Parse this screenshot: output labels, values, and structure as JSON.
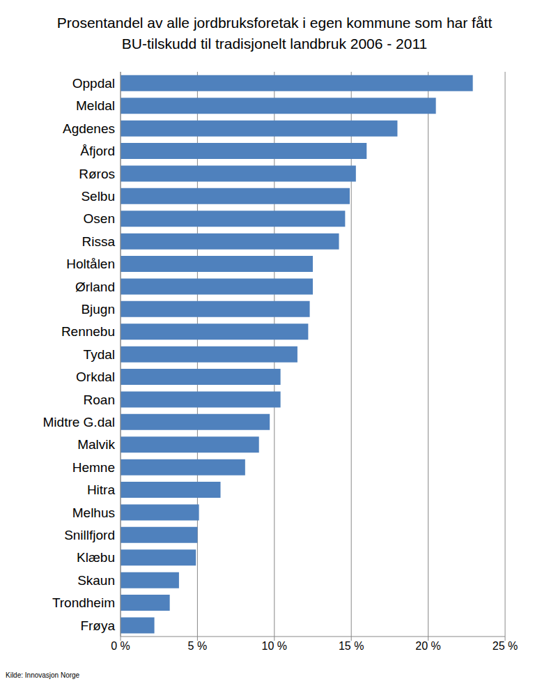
{
  "chart_data": {
    "type": "bar",
    "title": "Prosentandel av alle jordbruksforetak i egen kommune som har fått BU-tilskudd til tradisjonelt landbruk 2006 - 2011",
    "annotations": [
      "Kilde: Innovasjon Norge"
    ],
    "orientation": "horizontal",
    "categories": [
      "Oppdal",
      "Meldal",
      "Agdenes",
      "Åfjord",
      "Røros",
      "Selbu",
      "Osen",
      "Rissa",
      "Holtålen",
      "Ørland",
      "Bjugn",
      "Rennebu",
      "Tydal",
      "Orkdal",
      "Roan",
      "Midtre G.dal",
      "Malvik",
      "Hemne",
      "Hitra",
      "Melhus",
      "Snillfjord",
      "Klæbu",
      "Skaun",
      "Trondheim",
      "Frøya"
    ],
    "values": [
      22.9,
      20.5,
      18.0,
      16.0,
      15.3,
      14.9,
      14.6,
      14.2,
      12.5,
      12.5,
      12.3,
      12.2,
      11.5,
      10.4,
      10.4,
      9.7,
      9.0,
      8.1,
      6.5,
      5.1,
      5.0,
      4.9,
      3.8,
      3.2,
      2.2
    ],
    "color": "#4f81bd",
    "xlim": [
      0,
      25
    ],
    "xticks": [
      {
        "value": 0,
        "label": "0 %"
      },
      {
        "value": 5,
        "label": "5 %"
      },
      {
        "value": 10,
        "label": "10 %"
      },
      {
        "value": 15,
        "label": "15 %"
      },
      {
        "value": 20,
        "label": "20 %"
      },
      {
        "value": 25,
        "label": "25 %"
      }
    ],
    "grid": true
  }
}
